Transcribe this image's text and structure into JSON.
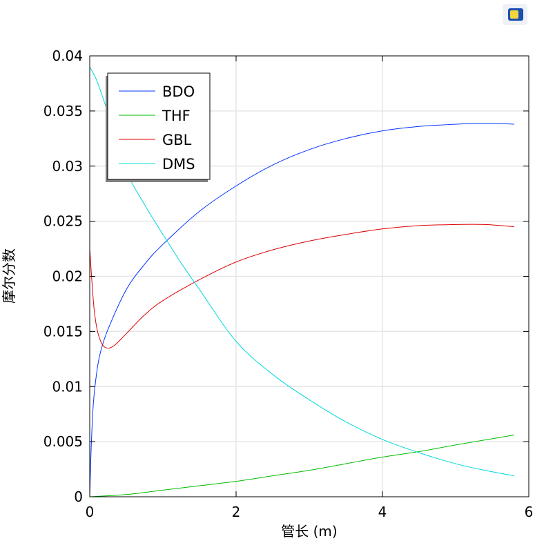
{
  "chart_data": {
    "type": "line",
    "title": "",
    "xlabel": "管长 (m)",
    "ylabel": "摩尔分数",
    "xlim": [
      0,
      6
    ],
    "ylim": [
      0,
      0.04
    ],
    "grid": true,
    "legend_position": "top-left",
    "xticks": [
      "0",
      "2",
      "4",
      "6"
    ],
    "xtick_values": [
      0,
      2,
      4,
      6
    ],
    "yticks": [
      "0",
      "0.005",
      "0.01",
      "0.015",
      "0.02",
      "0.025",
      "0.03",
      "0.035",
      "0.04"
    ],
    "ytick_values": [
      0,
      0.005,
      0.01,
      0.015,
      0.02,
      0.025,
      0.03,
      0.035,
      0.04
    ],
    "series": [
      {
        "name": "BDO",
        "color": "#0033ff",
        "x": [
          0,
          0.02,
          0.05,
          0.1,
          0.15,
          0.25,
          0.5,
          0.75,
          1,
          1.5,
          2,
          2.5,
          3,
          3.5,
          4,
          4.5,
          5,
          5.4,
          5.8
        ],
        "y": [
          0,
          0.0045,
          0.0085,
          0.0115,
          0.0132,
          0.0152,
          0.0188,
          0.0211,
          0.0229,
          0.0259,
          0.0282,
          0.0301,
          0.0315,
          0.0325,
          0.0332,
          0.0336,
          0.0338,
          0.0339,
          0.0338
        ]
      },
      {
        "name": "THF",
        "color": "#00bb00",
        "x": [
          0,
          0.5,
          1,
          1.5,
          2,
          2.5,
          3,
          3.5,
          4,
          4.5,
          5,
          5.8
        ],
        "y": [
          0,
          0.0002,
          0.0006,
          0.001,
          0.0014,
          0.0019,
          0.0024,
          0.003,
          0.0036,
          0.0041,
          0.0047,
          0.0056
        ]
      },
      {
        "name": "GBL",
        "color": "#dd0000",
        "x": [
          0,
          0.03,
          0.06,
          0.1,
          0.15,
          0.2,
          0.27,
          0.35,
          0.5,
          0.75,
          1,
          1.5,
          2,
          2.5,
          3,
          3.5,
          4,
          4.5,
          5,
          5.4,
          5.8
        ],
        "y": [
          0.0225,
          0.0195,
          0.017,
          0.0152,
          0.0141,
          0.0136,
          0.0135,
          0.0138,
          0.0148,
          0.0165,
          0.0178,
          0.0197,
          0.0213,
          0.0224,
          0.0232,
          0.0238,
          0.0243,
          0.0246,
          0.0247,
          0.0247,
          0.0245
        ]
      },
      {
        "name": "DMS",
        "color": "#00d8d8",
        "x": [
          0,
          0.1,
          0.25,
          0.5,
          0.75,
          1,
          1.25,
          1.5,
          2,
          2.5,
          3,
          3.5,
          4,
          4.5,
          5,
          5.4,
          5.8
        ],
        "y": [
          0.039,
          0.0377,
          0.0348,
          0.0296,
          0.0265,
          0.0238,
          0.0212,
          0.0188,
          0.0141,
          0.0111,
          0.0088,
          0.0068,
          0.0052,
          0.004,
          0.003,
          0.0024,
          0.0019
        ]
      }
    ]
  }
}
